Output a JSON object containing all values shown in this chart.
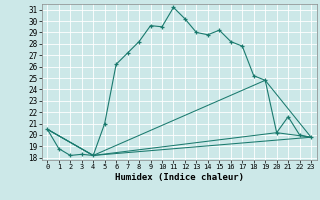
{
  "xlabel": "Humidex (Indice chaleur)",
  "bg_color": "#cce8e8",
  "line_color": "#1a7a6e",
  "grid_color": "#ffffff",
  "xlim": [
    -0.5,
    23.5
  ],
  "ylim": [
    17.8,
    31.5
  ],
  "yticks": [
    18,
    19,
    20,
    21,
    22,
    23,
    24,
    25,
    26,
    27,
    28,
    29,
    30,
    31
  ],
  "xticks": [
    0,
    1,
    2,
    3,
    4,
    5,
    6,
    7,
    8,
    9,
    10,
    11,
    12,
    13,
    14,
    15,
    16,
    17,
    18,
    19,
    20,
    21,
    22,
    23
  ],
  "lines": [
    {
      "x": [
        0,
        1,
        2,
        3,
        4,
        5,
        6,
        7,
        8,
        9,
        10,
        11,
        12,
        13,
        14,
        15,
        16,
        17,
        18,
        19,
        20,
        21,
        22,
        23
      ],
      "y": [
        20.5,
        18.8,
        18.2,
        18.3,
        18.2,
        21.0,
        26.2,
        27.2,
        28.2,
        29.6,
        29.5,
        31.2,
        30.2,
        29.0,
        28.8,
        29.2,
        28.2,
        27.8,
        25.2,
        24.8,
        20.2,
        21.6,
        20.0,
        19.8
      ],
      "marker": true
    },
    {
      "x": [
        0,
        4,
        23
      ],
      "y": [
        20.5,
        18.2,
        19.8
      ],
      "marker": false
    },
    {
      "x": [
        0,
        4,
        20,
        23
      ],
      "y": [
        20.5,
        18.2,
        20.2,
        19.8
      ],
      "marker": false
    },
    {
      "x": [
        0,
        4,
        19,
        23
      ],
      "y": [
        20.5,
        18.2,
        24.8,
        19.8
      ],
      "marker": false
    }
  ]
}
